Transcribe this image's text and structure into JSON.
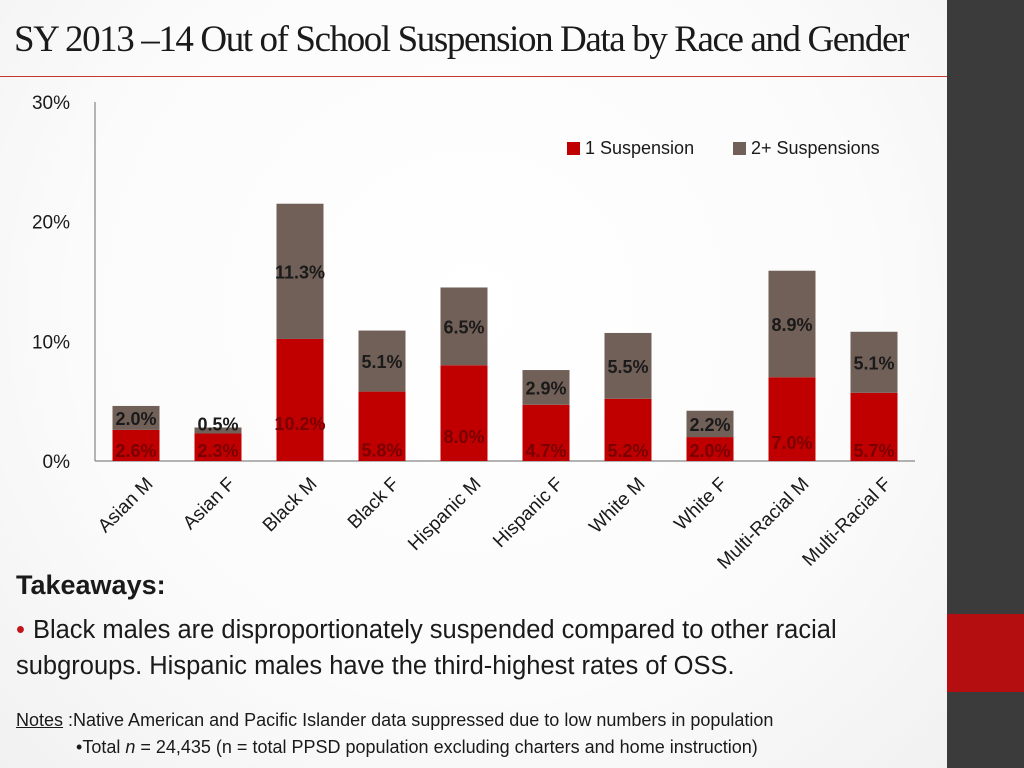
{
  "title": "SY 2013 –14 Out of School Suspension Data by Race and Gender",
  "chart_data": {
    "type": "bar",
    "stacked": true,
    "categories": [
      "Asian M",
      "Asian F",
      "Black M",
      "Black F",
      "Hispanic M",
      "Hispanic F",
      "White M",
      "White F",
      "Multi-Racial M",
      "Multi-Racial F"
    ],
    "series": [
      {
        "name": "1 Suspension",
        "color": "#c00000",
        "values": [
          2.6,
          2.3,
          10.2,
          5.8,
          8.0,
          4.7,
          5.2,
          2.0,
          7.0,
          5.7
        ],
        "labels": [
          "2.6%",
          "2.3%",
          "10.2%",
          "5.8%",
          "8.0%",
          "4.7%",
          "5.2%",
          "2.0%",
          "7.0%",
          "5.7%"
        ]
      },
      {
        "name": "2+ Suspensions",
        "color": "#716058",
        "values": [
          2.0,
          0.5,
          11.3,
          5.1,
          6.5,
          2.9,
          5.5,
          2.2,
          8.9,
          5.1
        ],
        "labels": [
          "2.0%",
          "0.5%",
          "11.3%",
          "5.1%",
          "6.5%",
          "2.9%",
          "5.5%",
          "2.2%",
          "8.9%",
          "5.1%"
        ]
      }
    ],
    "ylim": [
      0,
      30
    ],
    "yticks": [
      0,
      10,
      20,
      30
    ],
    "ytick_labels": [
      "0%",
      "10%",
      "20%",
      "30%"
    ],
    "xlabel": "",
    "ylabel": "",
    "legend": "top-right",
    "grid": false
  },
  "takeaways": {
    "heading": "Takeaways:",
    "bullet": "•",
    "text": "Black males are disproportionately suspended compared to other racial subgroups. Hispanic males have the third-highest rates of OSS."
  },
  "notes": {
    "label": "Notes",
    "line1": " :Native American and Pacific Islander data suppressed due to low numbers in population",
    "line2_bullet": "•",
    "line2_prefix": "Total ",
    "line2_n": "n",
    "line2_rest": " = 24,435 (n = total PPSD  population excluding charters and home instruction)"
  }
}
